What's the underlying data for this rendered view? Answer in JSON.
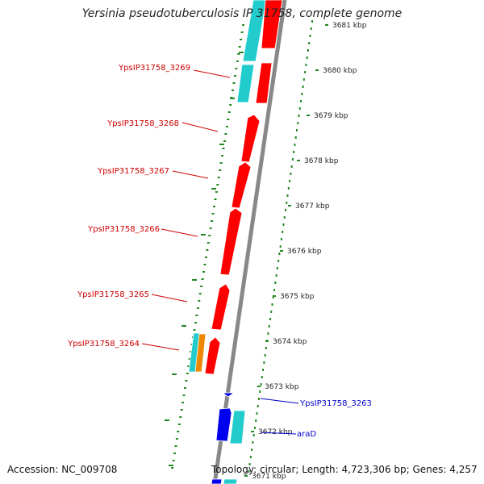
{
  "title": "Yersinia pseudotuberculosis IP 31758, complete genome",
  "accession": "Accession: NC_009708",
  "summary": "Topology: circular; Length: 4,723,306 bp; Genes: 4,257",
  "colors": {
    "cds_plus": "#ff0000",
    "cds_minus": "#0000ee",
    "gene_cyan": "#22cccc",
    "gene_orange": "#ee8800",
    "axis": "#888888",
    "tick": "#228822",
    "label_red": "#cc0000",
    "label_blue": "#0000cc"
  },
  "kbp_ticks": [
    "3681 kbp",
    "3680 kbp",
    "3679 kbp",
    "3678 kbp",
    "3677 kbp",
    "3676 kbp",
    "3675 kbp",
    "3674 kbp",
    "3673 kbp",
    "3672 kbp",
    "3671 kbp"
  ],
  "gene_labels": [
    {
      "text": "YpsIP31758_3269",
      "color": "red"
    },
    {
      "text": "YpsIP31758_3268",
      "color": "red"
    },
    {
      "text": "YpsIP31758_3267",
      "color": "red"
    },
    {
      "text": "YpsIP31758_3266",
      "color": "red"
    },
    {
      "text": "YpsIP31758_3265",
      "color": "red"
    },
    {
      "text": "YpsIP31758_3264",
      "color": "red"
    },
    {
      "text": "YpsIP31758_3263",
      "color": "blue"
    },
    {
      "text": "araD",
      "color": "blue"
    }
  ]
}
